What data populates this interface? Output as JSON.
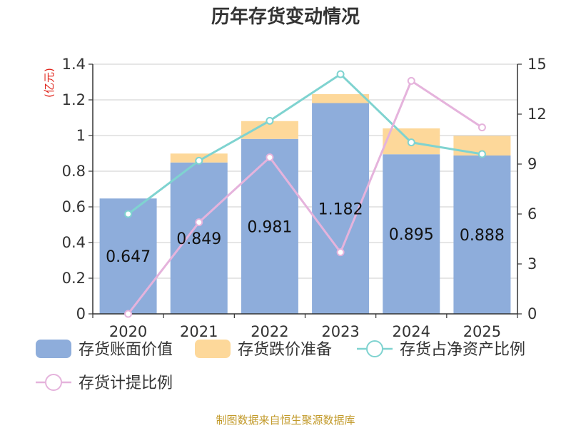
{
  "chart_data": {
    "type": "bar",
    "title": "历年存货变动情况",
    "categories": [
      "2020",
      "2021",
      "2022",
      "2023",
      "2024",
      "2025"
    ],
    "series": [
      {
        "name": "存货账面价值",
        "type": "bar",
        "stack": "inventory",
        "axis": "left",
        "color": "#8eaddb",
        "values": [
          0.647,
          0.849,
          0.981,
          1.182,
          0.895,
          0.888
        ]
      },
      {
        "name": "存货跌价准备",
        "type": "bar",
        "stack": "inventory",
        "axis": "left",
        "color": "#fdd89a",
        "values": [
          0.0,
          0.05,
          0.1,
          0.05,
          0.145,
          0.11
        ]
      },
      {
        "name": "存货占净资产比例",
        "type": "line",
        "axis": "right",
        "color": "#7fd3d0",
        "values": [
          6.0,
          9.2,
          11.6,
          14.4,
          10.3,
          9.6
        ]
      },
      {
        "name": "存货计提比例",
        "type": "line",
        "axis": "right",
        "color": "#e5b3dc",
        "values": [
          0.0,
          5.5,
          9.4,
          3.7,
          14.0,
          11.2
        ]
      }
    ],
    "left_axis": {
      "unit": "(亿元)",
      "range": [
        0,
        1.4
      ],
      "ticks": [
        "0",
        "0.2",
        "0.4",
        "0.6",
        "0.8",
        "1",
        "1.2",
        "1.4"
      ]
    },
    "right_axis": {
      "range": [
        0,
        15
      ],
      "ticks": [
        "0",
        "3",
        "6",
        "9",
        "12",
        "15"
      ]
    },
    "bar_labels": [
      "0.647",
      "0.849",
      "0.981",
      "1.182",
      "0.895",
      "0.888"
    ],
    "grid": true,
    "legend_position": "bottom"
  },
  "source": "制图数据来自恒生聚源数据库"
}
